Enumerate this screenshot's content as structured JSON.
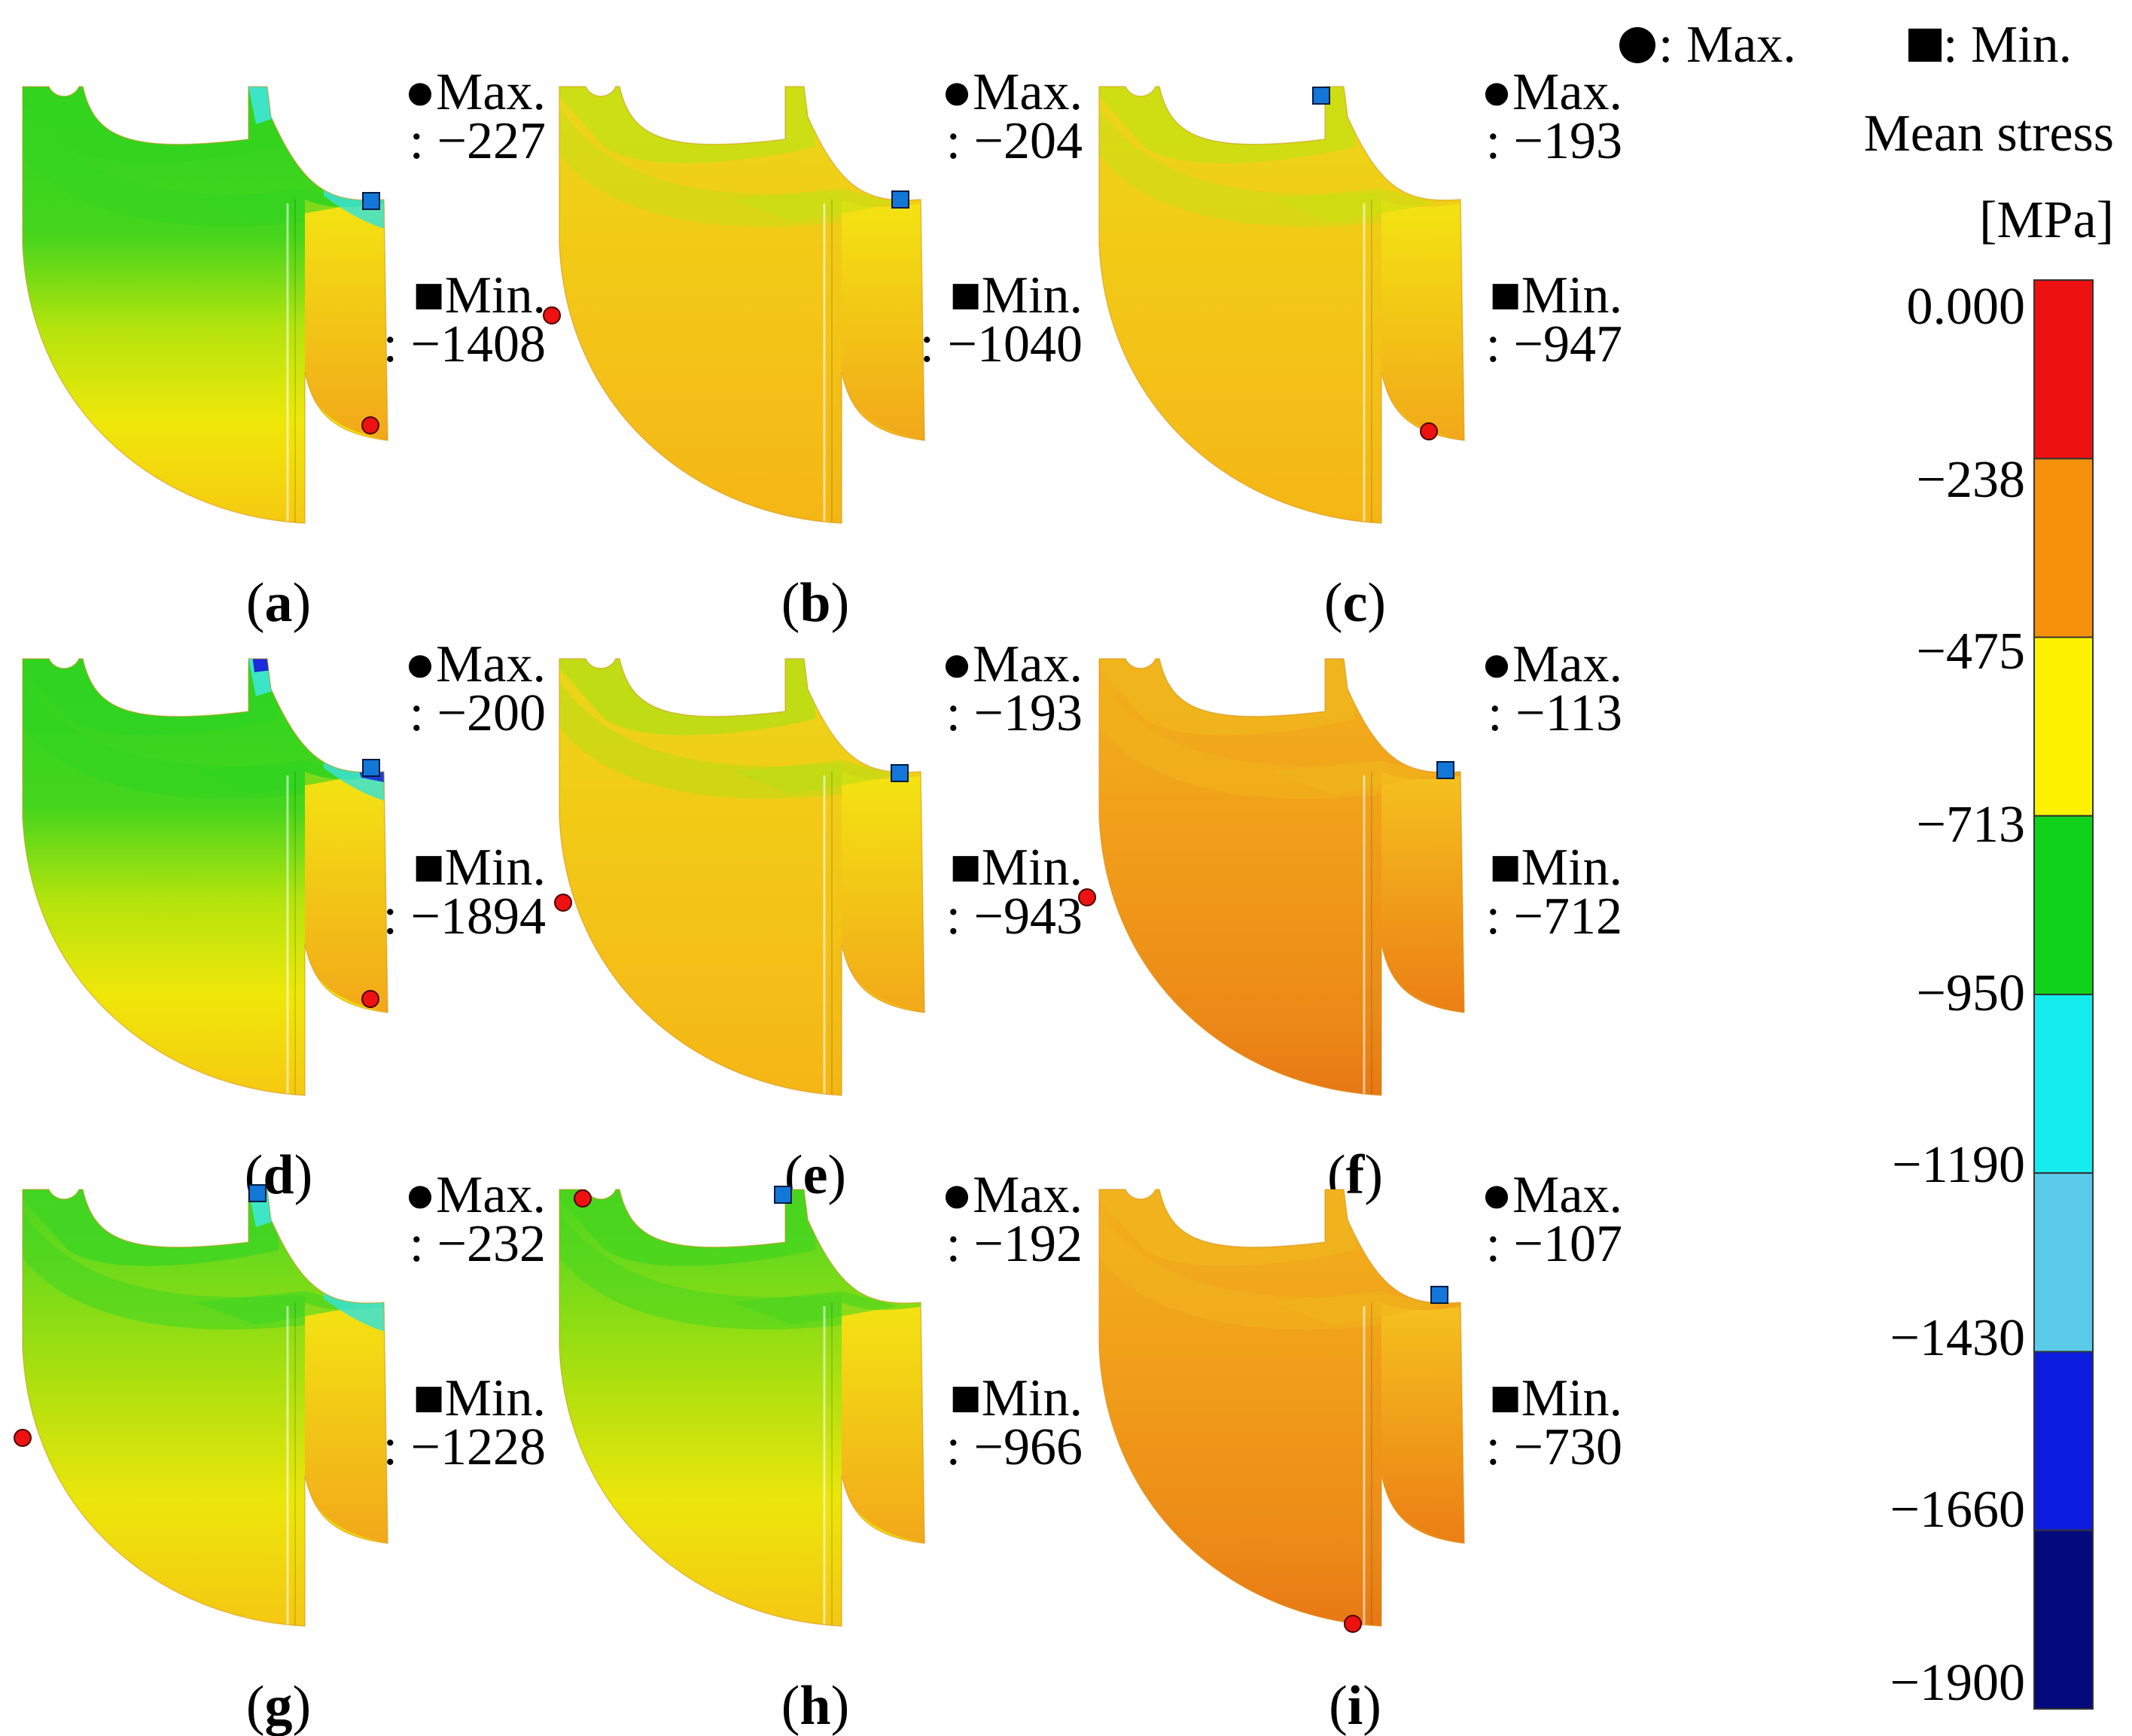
{
  "legend": {
    "max_symbol_label": ": Max.",
    "min_symbol_label": ": Min.",
    "title_line1": "Mean stress",
    "title_line2": "[MPa]",
    "ticks": [
      "0.000",
      "−238",
      "−475",
      "−713",
      "−950",
      "−1190",
      "−1430",
      "−1660",
      "−1900"
    ],
    "bands": [
      "#ee1111",
      "#f5900a",
      "#fef200",
      "#10d21a",
      "#15eced",
      "#5bcbea",
      "#0c1cdf",
      "#040a7c"
    ]
  },
  "panels": [
    {
      "id": "a",
      "open": "(",
      "letter": "a",
      "close": ")",
      "max_label": "●Max.",
      "max_value": ": −227",
      "min_label": "■Min.",
      "min_value": ": −1408"
    },
    {
      "id": "b",
      "open": "(",
      "letter": "b",
      "close": ")",
      "max_label": "●Max.",
      "max_value": ": −204",
      "min_label": "■Min.",
      "min_value": ": −1040"
    },
    {
      "id": "c",
      "open": "(",
      "letter": "c",
      "close": ")",
      "max_label": "●Max.",
      "max_value": ": −193",
      "min_label": "■Min.",
      "min_value": ": −947"
    },
    {
      "id": "d",
      "open": "(",
      "letter": "d",
      "close": ")",
      "max_label": "●Max.",
      "max_value": ": −200",
      "min_label": "■Min.",
      "min_value": ": −1894"
    },
    {
      "id": "e",
      "open": "(",
      "letter": "e",
      "close": ")",
      "max_label": "●Max.",
      "max_value": ": −193",
      "min_label": "■Min.",
      "min_value": ": −943"
    },
    {
      "id": "f",
      "open": "(",
      "letter": "f",
      "close": ")",
      "max_label": "●Max.",
      "max_value": ": −113",
      "min_label": "■Min.",
      "min_value": ": −712"
    },
    {
      "id": "g",
      "open": "(",
      "letter": "g",
      "close": ")",
      "max_label": "●Max.",
      "max_value": ": −232",
      "min_label": "■Min.",
      "min_value": ": −1228"
    },
    {
      "id": "h",
      "open": "(",
      "letter": "h",
      "close": ")",
      "max_label": "●Max.",
      "max_value": ": −192",
      "min_label": "■Min.",
      "min_value": ": −966"
    },
    {
      "id": "i",
      "open": "(",
      "letter": "i",
      "close": ")",
      "max_label": "●Max.",
      "max_value": ": −107",
      "min_label": "■Min.",
      "min_value": ": −730"
    }
  ]
}
